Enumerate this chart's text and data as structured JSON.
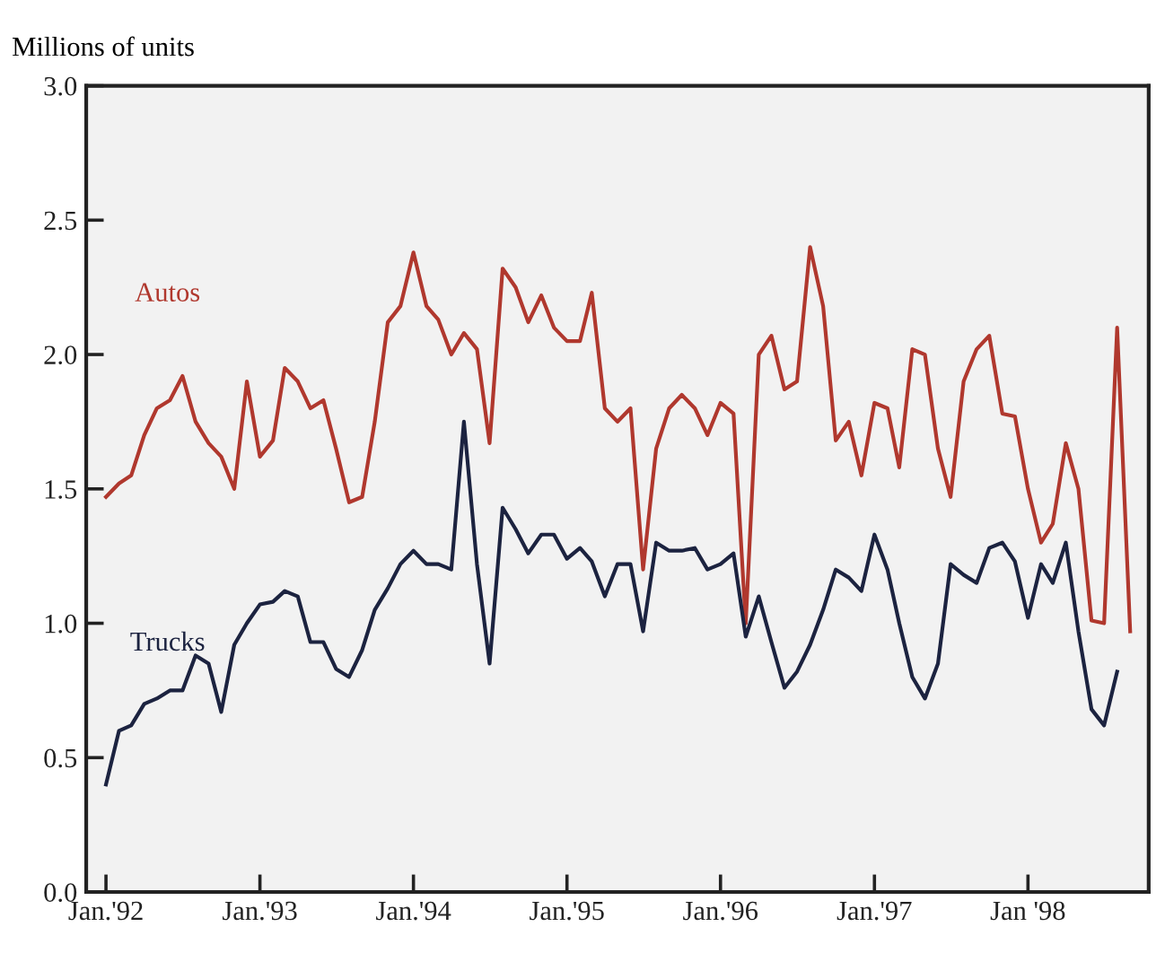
{
  "chart_data": {
    "type": "line",
    "ylabel": "Millions of units",
    "x": [
      "1992-01",
      "1992-02",
      "1992-03",
      "1992-04",
      "1992-05",
      "1992-06",
      "1992-07",
      "1992-08",
      "1992-09",
      "1992-10",
      "1992-11",
      "1992-12",
      "1993-01",
      "1993-02",
      "1993-03",
      "1993-04",
      "1993-05",
      "1993-06",
      "1993-07",
      "1993-08",
      "1993-09",
      "1993-10",
      "1993-11",
      "1993-12",
      "1994-01",
      "1994-02",
      "1994-03",
      "1994-04",
      "1994-05",
      "1994-06",
      "1994-07",
      "1994-08",
      "1994-09",
      "1994-10",
      "1994-11",
      "1994-12",
      "1995-01",
      "1995-02",
      "1995-03",
      "1995-04",
      "1995-05",
      "1995-06",
      "1995-07",
      "1995-08",
      "1995-09",
      "1995-10",
      "1995-11",
      "1995-12",
      "1996-01",
      "1996-02",
      "1996-03",
      "1996-04",
      "1996-05",
      "1996-06",
      "1996-07",
      "1996-08",
      "1996-09",
      "1996-10",
      "1996-11",
      "1996-12",
      "1997-01",
      "1997-02",
      "1997-03",
      "1997-04",
      "1997-05",
      "1997-06",
      "1997-07",
      "1997-08",
      "1997-09",
      "1997-10",
      "1997-11",
      "1997-12",
      "1998-01",
      "1998-02",
      "1998-03",
      "1998-04",
      "1998-05",
      "1998-06",
      "1998-07",
      "1998-08",
      "1998-09"
    ],
    "series": [
      {
        "name": "Autos",
        "color": "#b0382e",
        "values": [
          1.47,
          1.52,
          1.55,
          1.7,
          1.8,
          1.83,
          1.92,
          1.75,
          1.67,
          1.62,
          1.5,
          1.9,
          1.62,
          1.68,
          1.95,
          1.9,
          1.8,
          1.83,
          1.65,
          1.45,
          1.47,
          1.75,
          2.12,
          2.18,
          2.38,
          2.18,
          2.13,
          2.0,
          2.08,
          2.02,
          1.67,
          2.32,
          2.25,
          2.12,
          2.22,
          2.1,
          2.05,
          2.05,
          2.23,
          1.8,
          1.75,
          1.8,
          1.2,
          1.65,
          1.8,
          1.85,
          1.8,
          1.7,
          1.82,
          1.78,
          1.0,
          2.0,
          2.07,
          1.87,
          1.9,
          2.4,
          2.18,
          1.68,
          1.75,
          1.55,
          1.82,
          1.8,
          1.58,
          2.02,
          2.0,
          1.65,
          1.47,
          1.9,
          2.02,
          2.07,
          1.78,
          1.77,
          1.5,
          1.3,
          1.37,
          1.67,
          1.5,
          1.01,
          1.0,
          2.1,
          0.97
        ]
      },
      {
        "name": "Trucks",
        "color": "#1c2340",
        "values": [
          0.4,
          0.6,
          0.62,
          0.7,
          0.72,
          0.75,
          0.75,
          0.88,
          0.85,
          0.67,
          0.92,
          1.0,
          1.07,
          1.08,
          1.12,
          1.1,
          0.93,
          0.93,
          0.83,
          0.8,
          0.9,
          1.05,
          1.13,
          1.22,
          1.27,
          1.22,
          1.22,
          1.2,
          1.75,
          1.22,
          0.85,
          1.43,
          1.35,
          1.26,
          1.33,
          1.33,
          1.24,
          1.28,
          1.23,
          1.1,
          1.22,
          1.22,
          0.97,
          1.3,
          1.27,
          1.27,
          1.28,
          1.2,
          1.22,
          1.26,
          0.95,
          1.1,
          0.93,
          0.76,
          0.82,
          0.92,
          1.05,
          1.2,
          1.17,
          1.12,
          1.33,
          1.2,
          1.0,
          0.8,
          0.72,
          0.85,
          1.22,
          1.18,
          1.15,
          1.28,
          1.3,
          1.23,
          1.02,
          1.22,
          1.15,
          1.3,
          0.97,
          0.68,
          0.62,
          0.82,
          null
        ]
      }
    ],
    "xlim": [
      "1991-11-15",
      "1998-10-15"
    ],
    "xticks": [
      {
        "value": "1992-01",
        "label": "Jan.'92"
      },
      {
        "value": "1993-01",
        "label": "Jan.'93"
      },
      {
        "value": "1994-01",
        "label": "Jan.'94"
      },
      {
        "value": "1995-01",
        "label": "Jan.'95"
      },
      {
        "value": "1996-01",
        "label": "Jan.'96"
      },
      {
        "value": "1997-01",
        "label": "Jan.'97"
      },
      {
        "value": "1998-01",
        "label": "Jan '98"
      }
    ],
    "ylim": [
      0,
      3
    ],
    "yticks": [
      {
        "value": 0,
        "label": "0.0"
      },
      {
        "value": 0.5,
        "label": "0.5"
      },
      {
        "value": 1,
        "label": "1.0"
      },
      {
        "value": 1.5,
        "label": "1.5"
      },
      {
        "value": 2,
        "label": "2.0"
      },
      {
        "value": 2.5,
        "label": "2.5"
      },
      {
        "value": 3,
        "label": "3.0"
      }
    ],
    "grid": false,
    "legend": false,
    "marker": "none",
    "line_style": "solid"
  }
}
